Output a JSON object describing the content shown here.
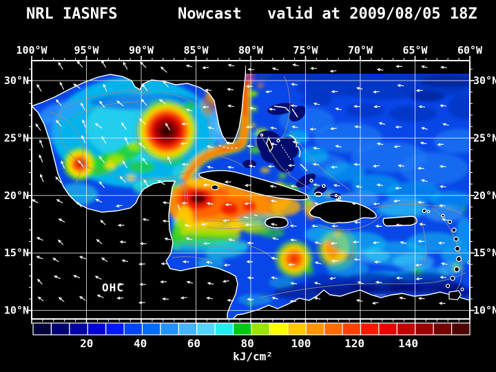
{
  "title": {
    "model": "NRL IASNFS",
    "product": "Nowcast",
    "valid": "valid at 2009/08/05 18Z"
  },
  "axes": {
    "lon_ticks": [
      "100°W",
      "95°W",
      "90°W",
      "85°W",
      "80°W",
      "75°W",
      "70°W",
      "65°W",
      "60°W"
    ],
    "lat_ticks": [
      "30°N",
      "25°N",
      "20°N",
      "15°N",
      "10°N"
    ]
  },
  "annotation": {
    "label": "OHC"
  },
  "colorbar": {
    "unit": "kJ/cm²",
    "labels": [
      "20",
      "40",
      "60",
      "80",
      "100",
      "120",
      "140"
    ],
    "label_values": [
      20,
      40,
      60,
      80,
      100,
      120,
      140
    ],
    "range_min": 0,
    "range_max": 163,
    "segment_colors": [
      "#000338",
      "#000072",
      "#0000a5",
      "#0000d8",
      "#0018ff",
      "#0044ff",
      "#006cff",
      "#2491ff",
      "#4ab3ff",
      "#55d4ff",
      "#22eeee",
      "#00c814",
      "#9be400",
      "#ffff00",
      "#ffc800",
      "#ff9600",
      "#ff6c00",
      "#ff4200",
      "#ff1800",
      "#e80000",
      "#c40000",
      "#9c0000",
      "#740000",
      "#4c0000"
    ]
  },
  "map_features": [
    {
      "name": "loop-current-warm-eddy",
      "lon": "88°W",
      "lat": "25.6°N"
    },
    {
      "name": "western-gulf-warm-eddy",
      "lon": "95.5°W",
      "lat": "22.8°N"
    },
    {
      "name": "nw-caribbean-warm-pool",
      "lon": "85°W",
      "lat": "20°N"
    },
    {
      "name": "south-of-hispaniola-warm-eddy",
      "lon": "76°W",
      "lat": "14.6°N"
    },
    {
      "name": "gulf-stream",
      "lon": "80°W",
      "lat": "25-30°N"
    }
  ],
  "wind": {
    "arrow_color": "#ffffff",
    "grid_dx": 31,
    "grid_dy": 28
  },
  "colors": {
    "background": "#000000",
    "land": "#000000",
    "coastline": "#ffffff",
    "gridline": "#e8e8e8",
    "bathymetry_contour": "#95908a",
    "ocean_base": "#0846e8",
    "text": "#ffffff"
  }
}
